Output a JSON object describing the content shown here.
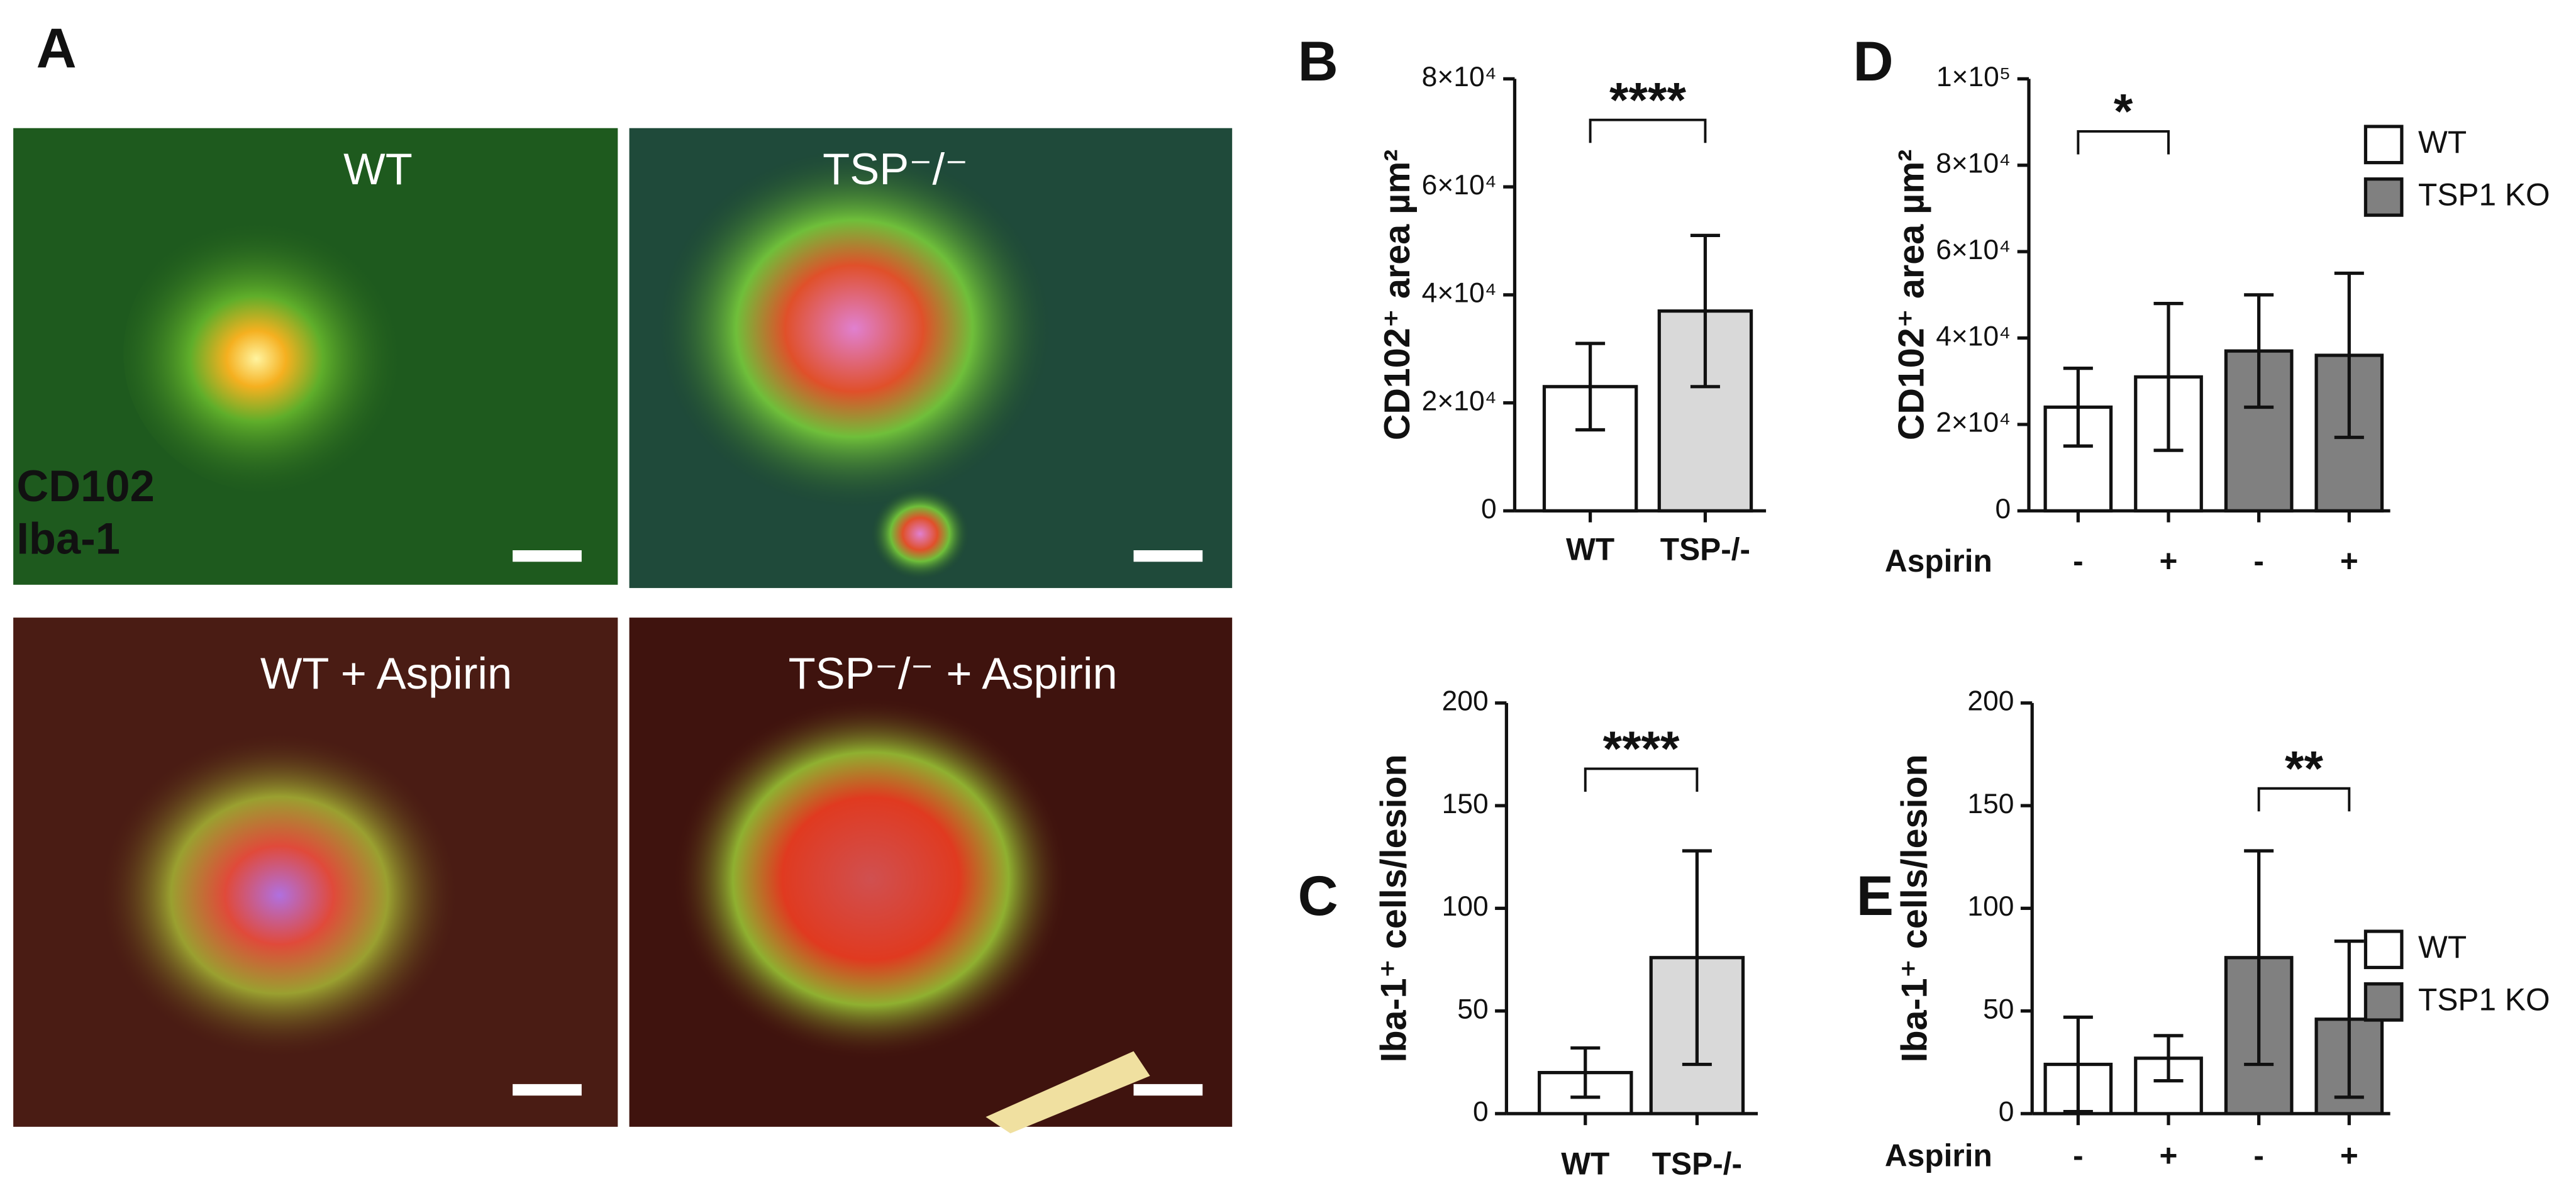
{
  "figure_a": {
    "panel_label": "A",
    "images": [
      {
        "label": "WT"
      },
      {
        "label": "TSP⁻/⁻"
      },
      {
        "label": "WT + Aspirin"
      },
      {
        "label": "TSP⁻/⁻ + Aspirin"
      }
    ],
    "stain_labels": [
      {
        "label": "CD102",
        "color": "#ff2a1a"
      },
      {
        "label": "Iba-1",
        "color": "#3ed34a"
      }
    ]
  },
  "chart_data": [
    {
      "type": "bar",
      "panel_label": "B",
      "y_label": "CD102⁺ area µm²",
      "categories": [
        "WT",
        "TSP-/-"
      ],
      "values": [
        23000,
        37000
      ],
      "errors": [
        8000,
        14000
      ],
      "colors": [
        "#ffffff",
        "#d9d9d9"
      ],
      "ylim": [
        0,
        80000
      ],
      "yticks": [
        0,
        {
          "value": 20000,
          "label": "2×10⁴"
        },
        {
          "value": 40000,
          "label": "4×10⁴"
        },
        {
          "value": 60000,
          "label": "6×10⁴"
        },
        {
          "value": 80000,
          "label": "8×10⁴"
        }
      ],
      "significance": {
        "label": "****",
        "between": [
          0,
          1
        ]
      }
    },
    {
      "type": "bar",
      "panel_label": "C",
      "y_label": "Iba-1⁺ cells/lesion",
      "categories": [
        "WT",
        "TSP-/-"
      ],
      "values": [
        20,
        76
      ],
      "errors": [
        12,
        52
      ],
      "colors": [
        "#ffffff",
        "#d9d9d9"
      ],
      "ylim": [
        0,
        200
      ],
      "yticks": [
        0,
        50,
        100,
        150,
        200
      ],
      "significance": {
        "label": "****",
        "between": [
          0,
          1
        ]
      }
    },
    {
      "type": "bar",
      "panel_label": "D",
      "y_label": "CD102⁺ area µm²",
      "x_row_label": "Aspirin",
      "categories": [
        "-",
        "+",
        "-",
        "+"
      ],
      "values": [
        24000,
        31000,
        37000,
        36000
      ],
      "errors": [
        9000,
        17000,
        13000,
        19000
      ],
      "colors": [
        "#ffffff",
        "#ffffff",
        "#808080",
        "#808080"
      ],
      "ylim": [
        0,
        100000
      ],
      "yticks": [
        0,
        {
          "value": 20000,
          "label": "2×10⁴"
        },
        {
          "value": 40000,
          "label": "4×10⁴"
        },
        {
          "value": 60000,
          "label": "6×10⁴"
        },
        {
          "value": 80000,
          "label": "8×10⁴"
        },
        {
          "value": 100000,
          "label": "1×10⁵"
        }
      ],
      "legend": [
        {
          "name": "WT",
          "color": "#ffffff"
        },
        {
          "name": "TSP1 KO",
          "color": "#808080"
        }
      ],
      "significance": {
        "label": "*",
        "between": [
          0,
          1
        ]
      }
    },
    {
      "type": "bar",
      "panel_label": "E",
      "y_label": "Iba-1⁺ cells/lesion",
      "x_row_label": "Aspirin",
      "categories": [
        "-",
        "+",
        "-",
        "+"
      ],
      "values": [
        24,
        27,
        76,
        46
      ],
      "errors": [
        23,
        11,
        52,
        38
      ],
      "colors": [
        "#ffffff",
        "#ffffff",
        "#808080",
        "#808080"
      ],
      "ylim": [
        0,
        200
      ],
      "yticks": [
        0,
        50,
        100,
        150,
        200
      ],
      "legend": [
        {
          "name": "WT",
          "color": "#ffffff"
        },
        {
          "name": "TSP1 KO",
          "color": "#808080"
        }
      ],
      "significance": {
        "label": "**",
        "between": [
          2,
          3
        ]
      }
    }
  ]
}
